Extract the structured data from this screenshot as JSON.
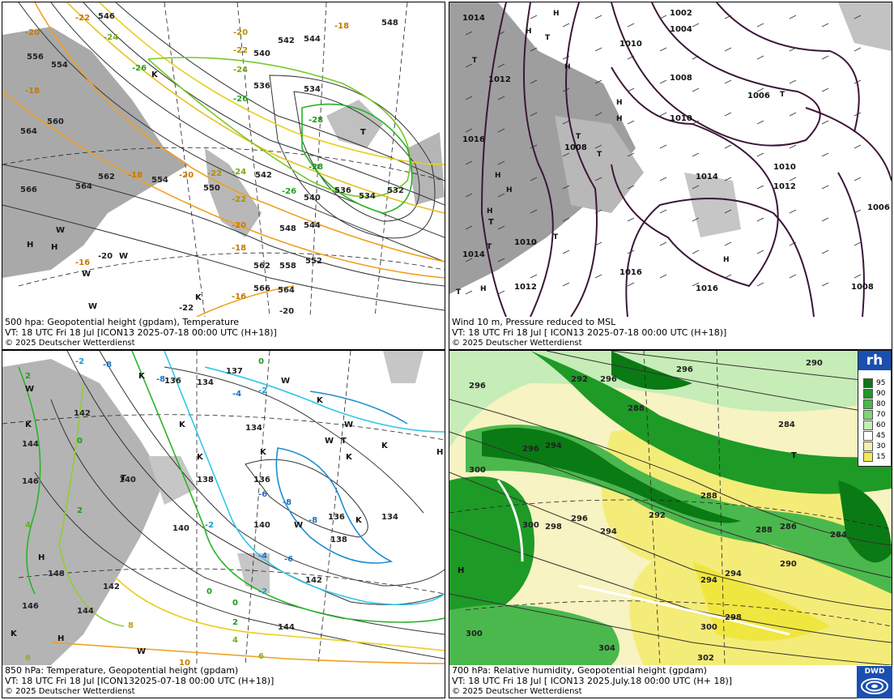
{
  "panels": {
    "p500": {
      "line1": "500 hpa: Geopotential height (gpdam), Temperature",
      "line2": "VT: 18 UTC Fri  18 Jul [ICON13 2025-07-18 00:00 UTC  (H+18)]",
      "line3": "© 2025 Deutscher Wetterdienst",
      "labels": [
        "546",
        "550",
        "548",
        "542",
        "540",
        "538",
        "536",
        "534",
        "532",
        "544",
        "552",
        "554",
        "556",
        "558",
        "560",
        "562",
        "564",
        "566",
        "-20",
        "-22",
        "-24",
        "-26",
        "-28",
        "-18",
        "-16",
        "H",
        "T",
        "K",
        "W"
      ]
    },
    "pmsl": {
      "line1": "Wind 10 m, Pressure reduced to MSL",
      "line2": "VT: 18 UTC Fri  18 Jul [ ICON13 2025-07-18 00:00 UTC (H+18)]",
      "line3": "© 2025 Deutscher Wetterdienst",
      "labels": [
        "1014",
        "1012",
        "1016",
        "1008",
        "1010",
        "1002",
        "1004",
        "1006",
        "1018",
        "H",
        "T"
      ]
    },
    "p850": {
      "line1": "850 hPa:  Temperature, Geopotential height (gpdam)",
      "line2": "VT: 18 UTC Fri  18 Jul [ICON132025-07-18 00:00 UTC  (H+18)]",
      "line3": "© 2025 Deutscher Wetterdienst",
      "labels": [
        "136",
        "137",
        "134",
        "138",
        "140",
        "142",
        "144",
        "146",
        "148",
        "-8",
        "-6",
        "-4",
        "-2",
        "0",
        "2",
        "4",
        "6",
        "8",
        "10",
        "K",
        "W",
        "T",
        "H"
      ]
    },
    "p700": {
      "line1": "700 hPa:  Relative humidity, Geopotential height (gpdam)",
      "line2": "VT: 18 UTC Fri  18 Jul [ ICON13  2025.July.18 00:00 UTC (H+ 18)]",
      "line3": "© 2025 Deutscher Wetterdienst",
      "labels": [
        "290",
        "296",
        "292",
        "288",
        "284",
        "286",
        "300",
        "298",
        "294",
        "304",
        "302",
        "H",
        "T"
      ]
    }
  },
  "legend": {
    "title": "rh",
    "levels": [
      "95",
      "90",
      "80",
      "70",
      "60",
      "45",
      "30",
      "15"
    ],
    "colors": [
      "#0a7a14",
      "#1e9a26",
      "#4bb84d",
      "#86d27c",
      "#c6ecb7",
      "#ffffff",
      "#f5f0b0",
      "#f2ea55"
    ]
  },
  "logo": {
    "text": "DWD"
  },
  "colors": {
    "land": "#a9a9a9",
    "isohypse": "#333333",
    "isobar": "#3c1638",
    "temp_orange": "#f0a020",
    "temp_yellow": "#e8d020",
    "temp_green": "#28b428",
    "temp_cyan": "#30c8e8",
    "temp_blue": "#1e8cd2"
  }
}
